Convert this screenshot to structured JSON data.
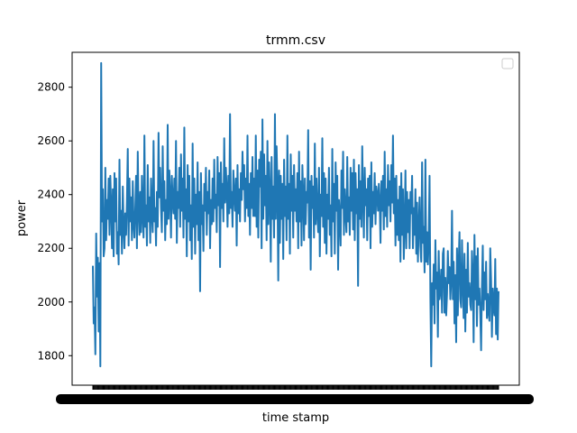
{
  "chart_data": {
    "type": "line",
    "title": "trmm.csv",
    "xlabel": "time stamp",
    "ylabel": "power",
    "ylim": [
      1690,
      2930
    ],
    "yticks": [
      1800,
      2000,
      2200,
      2400,
      2600,
      2800
    ],
    "grid": false,
    "legend": {
      "placement": "top-right",
      "entries": []
    },
    "x_tick_labels_note": "tick labels overlap and are illegible",
    "line_color": "#1f77b4",
    "series": [
      {
        "values": [
          2135,
          1920,
          1980,
          1805,
          2255,
          2020,
          2165,
          1890,
          2145,
          1760,
          2890,
          2300,
          2420,
          2170,
          2200,
          2500,
          2230,
          2380,
          2310,
          2460,
          2250,
          2470,
          2360,
          2200,
          2420,
          2170,
          2480,
          2300,
          2460,
          2180,
          2260,
          2140,
          2530,
          2250,
          2340,
          2180,
          2430,
          2280,
          2200,
          2330,
          2250,
          2380,
          2570,
          2210,
          2460,
          2300,
          2390,
          2230,
          2450,
          2290,
          2240,
          2350,
          2470,
          2200,
          2560,
          2340,
          2250,
          2410,
          2260,
          2470,
          2320,
          2240,
          2620,
          2280,
          2360,
          2210,
          2510,
          2300,
          2390,
          2220,
          2460,
          2330,
          2260,
          2600,
          2300,
          2350,
          2210,
          2410,
          2280,
          2630,
          2390,
          2500,
          2350,
          2260,
          2580,
          2340,
          2450,
          2230,
          2380,
          2290,
          2660,
          2310,
          2490,
          2400,
          2240,
          2470,
          2380,
          2330,
          2460,
          2310,
          2600,
          2220,
          2410,
          2350,
          2500,
          2280,
          2550,
          2340,
          2460,
          2240,
          2650,
          2310,
          2420,
          2170,
          2510,
          2300,
          2470,
          2230,
          2360,
          2160,
          2590,
          2280,
          2460,
          2180,
          2400,
          2290,
          2520,
          2230,
          2410,
          2040,
          2480,
          2290,
          2360,
          2190,
          2440,
          2340,
          2500,
          2250,
          2410,
          2330,
          2490,
          2200,
          2380,
          2290,
          2460,
          2300,
          2530,
          2350,
          2400,
          2260,
          2540,
          2360,
          2480,
          2130,
          2520,
          2350,
          2440,
          2300,
          2610,
          2370,
          2500,
          2420,
          2280,
          2470,
          2330,
          2700,
          2350,
          2410,
          2280,
          2490,
          2400,
          2340,
          2460,
          2210,
          2510,
          2330,
          2420,
          2300,
          2480,
          2380,
          2560,
          2420,
          2510,
          2300,
          2460,
          2350,
          2620,
          2320,
          2440,
          2250,
          2480,
          2350,
          2540,
          2320,
          2460,
          2320,
          2620,
          2280,
          2490,
          2240,
          2530,
          2430,
          2560,
          2200,
          2680,
          2310,
          2550,
          2360,
          2470,
          2230,
          2600,
          2290,
          2520,
          2410,
          2150,
          2540,
          2310,
          2430,
          2240,
          2700,
          2310,
          2580,
          2430,
          2080,
          2490,
          2220,
          2470,
          2310,
          2440,
          2160,
          2530,
          2320,
          2430,
          2230,
          2620,
          2310,
          2440,
          2180,
          2550,
          2340,
          2470,
          2240,
          2510,
          2340,
          2420,
          2300,
          2480,
          2200,
          2560,
          2300,
          2450,
          2210,
          2510,
          2400,
          2230,
          2460,
          2290,
          2410,
          2370,
          2640,
          2240,
          2450,
          2120,
          2470,
          2350,
          2430,
          2240,
          2590,
          2290,
          2460,
          2330,
          2260,
          2500,
          2170,
          2400,
          2320,
          2610,
          2280,
          2480,
          2220,
          2460,
          2180,
          2400,
          2310,
          2500,
          2250,
          2360,
          2170,
          2570,
          2300,
          2440,
          2180,
          2520,
          2340,
          2470,
          2120,
          2380,
          2320,
          2210,
          2490,
          2350,
          2560,
          2250,
          2420,
          2330,
          2260,
          2540,
          2300,
          2390,
          2250,
          2500,
          2340,
          2480,
          2270,
          2530,
          2230,
          2480,
          2330,
          2420,
          2060,
          2510,
          2310,
          2450,
          2280,
          2580,
          2390,
          2240,
          2500,
          2360,
          2420,
          2230,
          2460,
          2320,
          2470,
          2200,
          2520,
          2280,
          2410,
          2330,
          2480,
          2290,
          2430,
          2400,
          2340,
          2440,
          2370,
          2220,
          2450,
          2340,
          2470,
          2270,
          2560,
          2320,
          2420,
          2280,
          2510,
          2360,
          2450,
          2300,
          2510,
          2370,
          2620,
          2330,
          2460,
          2210,
          2470,
          2250,
          2380,
          2230,
          2430,
          2150,
          2480,
          2250,
          2420,
          2160,
          2280,
          2490,
          2200,
          2410,
          2260,
          2380,
          2200,
          2410,
          2330,
          2470,
          2200,
          2350,
          2250,
          2420,
          2180,
          2370,
          2150,
          2280,
          2390,
          2210,
          2150,
          2520,
          2220,
          2280,
          2110,
          2530,
          2150,
          2260,
          2140,
          2230,
          2470,
          2010,
          1760,
          2070,
          1990,
          2140,
          1920,
          2230,
          2050,
          2110,
          1870,
          2190,
          2010,
          2040,
          2120,
          1960,
          2180,
          2200,
          1960,
          2090,
          1950,
          2030,
          2190,
          2070,
          2130,
          2010,
          2080,
          2340,
          2010,
          2150,
          1920,
          2100,
          1850,
          2200,
          1950,
          2140,
          2260,
          2010,
          1980,
          2230,
          2070,
          1940,
          2180,
          1890,
          2120,
          1960,
          2220,
          2020,
          2070,
          1990,
          1970,
          2190,
          2100,
          1850,
          2250,
          2010,
          2170,
          1910,
          2200,
          1990,
          2050,
          1960,
          1820,
          2060,
          2210,
          1970,
          2110,
          2010,
          2150,
          1940,
          2030,
          1960,
          1930,
          2200,
          2080,
          1870,
          2050,
          1980,
          1950,
          2160,
          1880,
          2050,
          1860,
          2040
        ]
      }
    ]
  }
}
